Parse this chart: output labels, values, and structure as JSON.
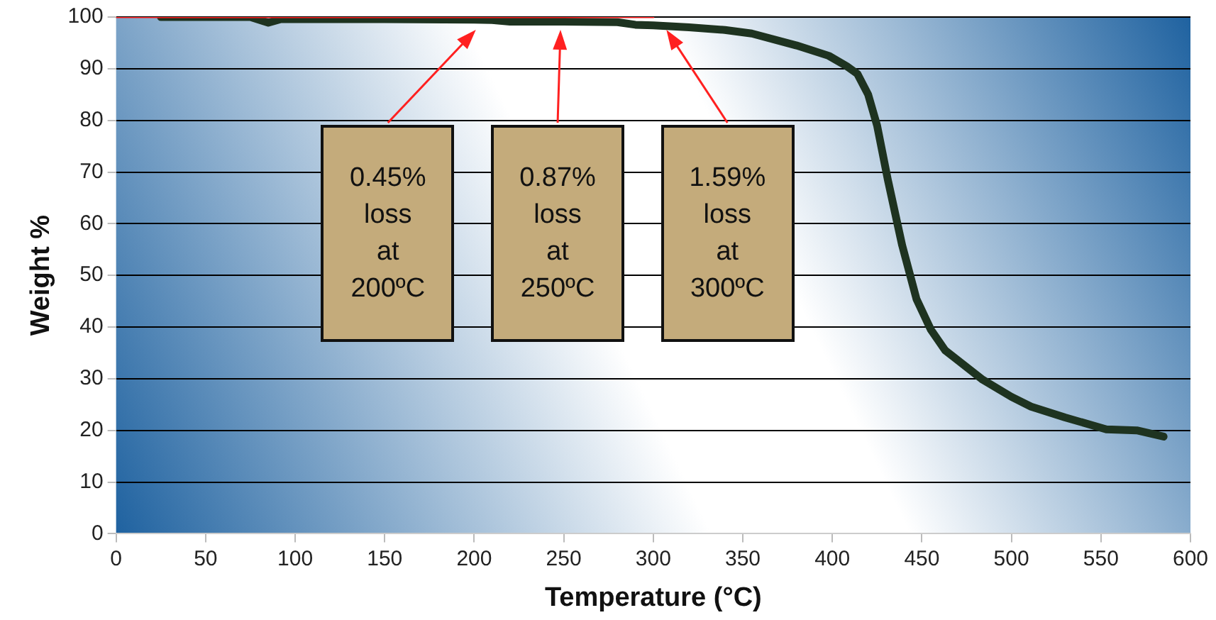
{
  "chart_data": {
    "type": "line",
    "xlabel": "Temperature (°C)",
    "ylabel": "Weight %",
    "xlim": [
      0,
      600
    ],
    "xticks": [
      0,
      50,
      100,
      150,
      200,
      250,
      300,
      350,
      400,
      450,
      500,
      550,
      600
    ],
    "ylim": [
      0,
      100
    ],
    "yticks": [
      0,
      10,
      20,
      30,
      40,
      50,
      60,
      70,
      80,
      90,
      100
    ],
    "grid": "y",
    "legend": false,
    "marker": "none",
    "series": [
      {
        "color": "#1e3320",
        "x": [
          25,
          75,
          85,
          92,
          150,
          200,
          210,
          220,
          250,
          280,
          290,
          300,
          320,
          340,
          355,
          380,
          398,
          408,
          414,
          420,
          425,
          431,
          439,
          447,
          455,
          463,
          484,
          500,
          511,
          530,
          553,
          570,
          585
        ],
        "values": [
          100,
          100,
          98.9,
          99.6,
          99.6,
          99.5,
          99.4,
          99.1,
          99.1,
          99.0,
          98.5,
          98.4,
          98.0,
          97.5,
          96.8,
          94.5,
          92.5,
          90.5,
          89,
          85,
          79,
          68.5,
          55.8,
          45.4,
          39.5,
          35.5,
          29.8,
          26.5,
          24.6,
          22.5,
          20.2,
          20,
          18.8
        ]
      },
      {
        "color": "#ff2020",
        "x": [
          0,
          300
        ],
        "values": [
          100,
          100
        ]
      }
    ],
    "annotations": [
      "0.45%\nloss\nat\n200ºC",
      "0.87%\nloss\nat\n250ºC",
      "1.59%\nloss\nat\n300ºC"
    ]
  }
}
